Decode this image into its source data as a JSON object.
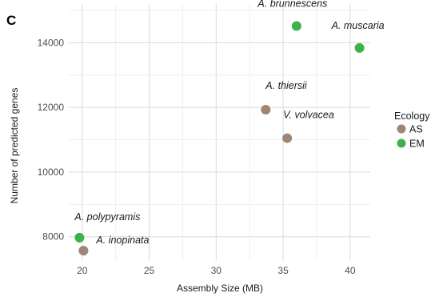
{
  "panel_label": "C",
  "chart_data": {
    "type": "scatter",
    "xlabel": "Assembly Size (MB)",
    "ylabel": "Number of predicted genes",
    "xlim": [
      19,
      41.5
    ],
    "ylim": [
      7250,
      15200
    ],
    "x_ticks": [
      20,
      25,
      30,
      35,
      40
    ],
    "y_ticks": [
      8000,
      10000,
      12000,
      14000
    ],
    "grid": true,
    "legend": {
      "title": "Ecology",
      "position": "right",
      "entries": [
        {
          "name": "AS",
          "color": "#9e8677"
        },
        {
          "name": "EM",
          "color": "#3cb34a"
        }
      ]
    },
    "points": [
      {
        "label": "A. brunnescens",
        "x": 36.0,
        "y": 14520,
        "group": "EM"
      },
      {
        "label": "A. muscaria",
        "x": 40.7,
        "y": 13840,
        "group": "EM"
      },
      {
        "label": "A. thiersii",
        "x": 33.7,
        "y": 11930,
        "group": "AS"
      },
      {
        "label": "V. volvacea",
        "x": 35.3,
        "y": 11050,
        "group": "AS"
      },
      {
        "label": "A. polypyramis",
        "x": 19.8,
        "y": 7970,
        "group": "EM"
      },
      {
        "label": "A. inopinata",
        "x": 20.1,
        "y": 7570,
        "group": "AS"
      }
    ]
  }
}
